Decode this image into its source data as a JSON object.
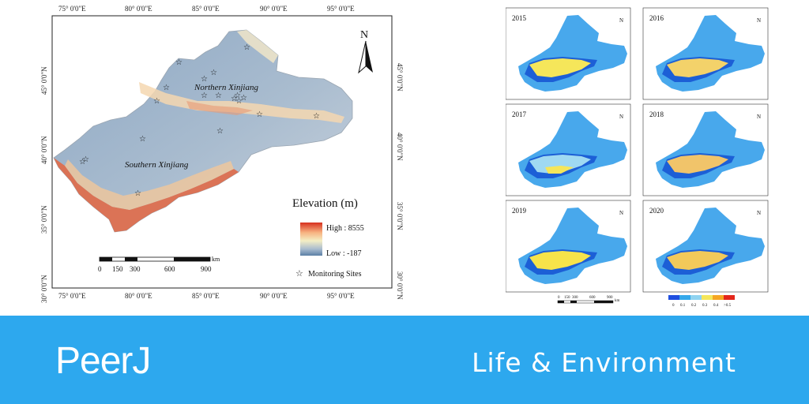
{
  "main_map": {
    "lon_ticks": [
      "75° 0'0\"E",
      "80° 0'0\"E",
      "85° 0'0\"E",
      "90° 0'0\"E",
      "95° 0'0\"E"
    ],
    "lat_ticks": [
      "45° 0'0\"N",
      "40° 0'0\"N",
      "35° 0'0\"N",
      "30° 0'0\"N"
    ],
    "region_labels": [
      "Northern Xinjiang",
      "Southern Xinjiang"
    ],
    "north_arrow": "N",
    "legend": {
      "title": "Elevation (m)",
      "high_label": "High : 8555",
      "low_label": "Low : -187",
      "sites_label": "Monitoring Sites"
    },
    "scale_bar": {
      "unit": "km",
      "labels": [
        "0",
        "150",
        "300",
        "600",
        "900"
      ]
    }
  },
  "small_maps": {
    "years": [
      "2015",
      "2016",
      "2017",
      "2018",
      "2019",
      "2020"
    ],
    "north_arrow": "N",
    "scale_labels": [
      "0",
      "150",
      "300",
      "600",
      "900"
    ],
    "scale_unit": "km",
    "legend_labels": [
      "0",
      "0.1",
      "0.2",
      "0.3",
      "0.4",
      ">0.5"
    ],
    "legend_colors": [
      "#1f4fe0",
      "#35a8ea",
      "#8fd3f0",
      "#f5e65a",
      "#f5a623",
      "#e3261b"
    ]
  },
  "banner": {
    "brand": "PeerJ",
    "tagline": "Life & Environment"
  }
}
